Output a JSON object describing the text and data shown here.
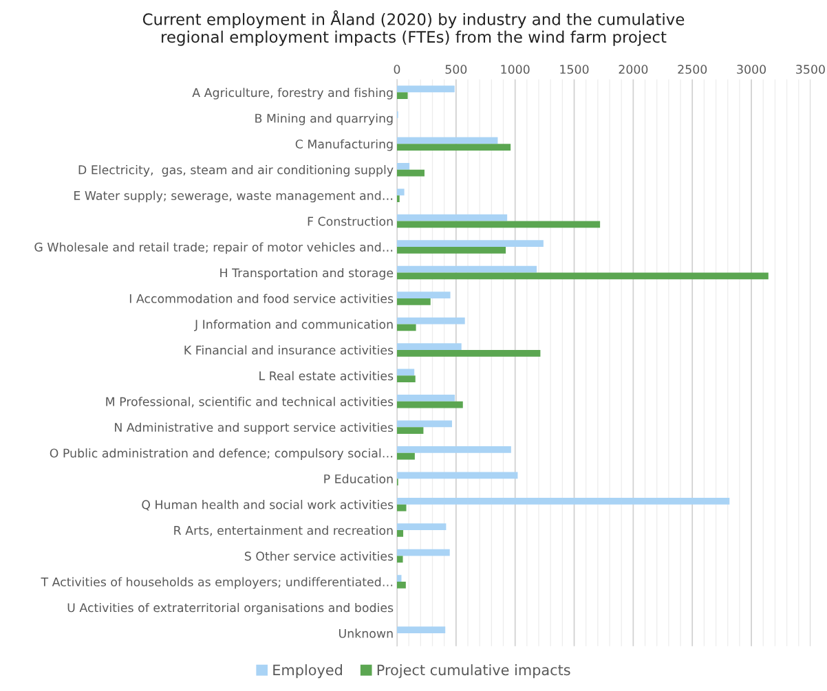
{
  "chart_data": {
    "type": "bar",
    "orientation": "horizontal",
    "title": "Current employment in Åland (2020) by industry and the cumulative\nregional employment impacts (FTEs) from the wind farm project",
    "categories": [
      "A Agriculture, forestry and fishing",
      "B Mining and quarrying",
      "C Manufacturing",
      "D Electricity,  gas, steam and air conditioning supply",
      "E Water supply; sewerage, waste management and…",
      "F Construction",
      "G Wholesale and retail trade; repair of motor vehicles and…",
      "H Transportation and storage",
      "I Accommodation and food service activities",
      "J Information and communication",
      "K Financial and insurance activities",
      "L Real estate activities",
      "M Professional, scientific and technical activities",
      "N Administrative and support service activities",
      "O Public administration and defence; compulsory social…",
      "P Education",
      "Q Human health and social work activities",
      "R Arts, entertainment and recreation",
      "S Other service activities",
      "T Activities of households as employers; undifferentiated…",
      "U Activities of extraterritorial organisations and bodies",
      "Unknown"
    ],
    "series": [
      {
        "name": "Employed",
        "color": "#a9d3f5",
        "values": [
          488,
          10,
          853,
          106,
          62,
          933,
          1240,
          1183,
          452,
          575,
          546,
          147,
          490,
          466,
          966,
          1022,
          2815,
          416,
          447,
          38,
          0,
          409
        ]
      },
      {
        "name": "Project cumulative impacts",
        "color": "#5ba651",
        "values": [
          91,
          0,
          962,
          233,
          22,
          1719,
          921,
          3144,
          284,
          161,
          1214,
          156,
          558,
          224,
          151,
          10,
          79,
          53,
          50,
          75,
          0,
          0
        ]
      }
    ],
    "xlim": [
      0,
      3500
    ],
    "xticks": [
      0,
      500,
      1000,
      1500,
      2000,
      2500,
      3000,
      3500
    ],
    "grid": "x",
    "legend": "bottom"
  }
}
